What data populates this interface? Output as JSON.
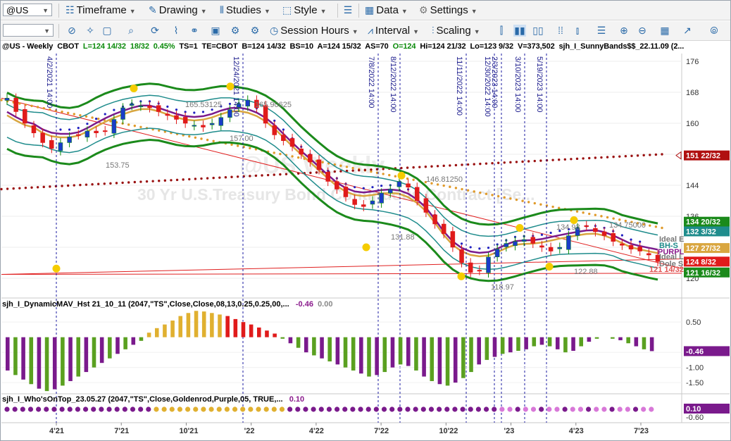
{
  "toolbar": {
    "symbol": "@US",
    "timeframe": "Timeframe",
    "drawing": "Drawing",
    "studies": "Studies",
    "style": "Style",
    "data": "Data",
    "settings": "Settings",
    "session_hours": "Session Hours",
    "interval": "Interval",
    "scaling": "Scaling"
  },
  "info_line": {
    "symbol": "@US - Weekly",
    "exchange": "CBOT",
    "last": "L=124 14/32",
    "change": "18/32",
    "change_pct": "0.45%",
    "ts": "TS=1",
    "te": "TE=CBOT",
    "bid": "B=124 14/32",
    "bs": "BS=10",
    "ask": "A=124 15/32",
    "as": "AS=70",
    "open": "O=124",
    "high": "Hi=124 21/32",
    "low": "Lo=123 9/32",
    "volume": "V=373,502",
    "study": "sjh_I_SunnyBands$$_22.11.09 (2..."
  },
  "watermark": {
    "line1": "@US Weekly",
    "line2": "30 Yr U.S.Treasury Bond Continuous Contract [Se..."
  },
  "panel2": {
    "label": "sjh_I_DynamicMAV_Hst 21_10_11 (2047,\"TS\",Close,Close,08,13,0.25,0.25,00,...",
    "v1": "-0.46",
    "v2": "0.00"
  },
  "panel3": {
    "label": "sjh_I_Who'sOnTop_23.05.27 (2047,\"TS\",Close,Goldenrod,Purple,05,  TRUE,...",
    "v1": "0.10"
  },
  "colors": {
    "up": "#0a8a0a",
    "down": "#e01b1b",
    "band_green": "#1b8a1b",
    "band_teal": "#1f8c8c",
    "ma_purple": "#7a1a8c",
    "ma_gold": "#d9a640",
    "dots_orange": "#e09a2a",
    "dots_darkred": "#9a1010",
    "dots_blue": "#2020c0",
    "marker_yellow": "#f5cc00",
    "vline_blue": "#1a1aa0"
  },
  "chart_data": [
    {
      "type": "candlestick",
      "title": "",
      "y_ticks": [
        "176",
        "168",
        "160",
        "152",
        "144",
        "136",
        "128",
        "120"
      ],
      "ylim": [
        118,
        178
      ],
      "x_ticks": [
        "4'21",
        "7'21",
        "10'21",
        "'22",
        "4'22",
        "7'22",
        "10'22",
        "'23",
        "4'23",
        "7'23"
      ],
      "price_labels": [
        {
          "text": "151 22/32",
          "value": 151.7,
          "color": "#b01010"
        },
        {
          "text": "134 20/32",
          "value": 134.6,
          "color": "#1b8a1b"
        },
        {
          "text": "132 3/32",
          "value": 132.1,
          "color": "#1f8c8c"
        },
        {
          "text": "127 27/32",
          "value": 127.8,
          "color": "#d9a640"
        },
        {
          "text": "124 8/32",
          "value": 124.3,
          "color": "#e01b1b"
        },
        {
          "text": "121 16/32",
          "value": 121.5,
          "color": "#1b8a1b"
        }
      ],
      "right_text_labels": [
        "Ideal E",
        "BH-S",
        "PURPL",
        "Ideal L",
        "Dole S",
        "121 14/32"
      ],
      "annotations": [
        "165.53125",
        "165.90625",
        "157.00",
        "153.75",
        "146.81250",
        "131.88",
        "118.97",
        "122.88",
        "134.75000",
        "134.93"
      ],
      "event_lines": [
        "4/2/2021 14:00",
        "12/24/2021 14:00",
        "7/8/2022 14:00",
        "8/12/2022 14:00",
        "11/11/2022 14:00",
        "12/30/2022 14:00",
        "2/3/2023 14:00",
        "3/10/2023 14:00",
        "5/19/2023 14:00"
      ],
      "close_path": [
        166.5,
        163,
        160,
        157.5,
        155,
        153.5,
        155,
        156.5,
        157,
        158,
        157.5,
        158,
        161,
        164,
        165,
        164.5,
        164,
        163,
        162,
        161,
        160,
        159.5,
        159,
        160,
        161.5,
        163.5,
        165,
        166,
        164,
        160,
        157,
        155.5,
        154,
        152,
        150,
        148,
        145,
        143,
        141,
        139,
        138.5,
        140,
        142,
        143,
        145,
        143.5,
        140,
        137,
        134,
        131.5,
        128,
        124,
        121.5,
        122,
        125.5,
        127.5,
        129,
        129.5,
        130,
        129,
        128,
        127,
        128,
        131,
        133,
        133.5,
        132,
        131,
        129.5,
        128.5,
        127.5,
        127,
        126,
        124.3
      ]
    },
    {
      "type": "bar",
      "title": "",
      "y_ticks": [
        "0.50",
        "-0.50",
        "-1.00",
        "-1.50"
      ],
      "ylim": [
        -1.8,
        0.9
      ],
      "values": [
        -1.1,
        -1.25,
        -1.4,
        -1.55,
        -1.7,
        -1.78,
        -1.72,
        -1.6,
        -1.45,
        -1.3,
        -1.15,
        -1.0,
        -0.85,
        -0.7,
        -0.55,
        -0.4,
        -0.25,
        -0.12,
        0.15,
        0.3,
        0.42,
        0.55,
        0.7,
        0.8,
        0.87,
        0.85,
        0.8,
        0.75,
        0.7,
        0.6,
        0.5,
        0.42,
        0.32,
        0.22,
        0.12,
        -0.05,
        -0.2,
        -0.35,
        -0.5,
        -0.6,
        -0.7,
        -0.8,
        -0.9,
        -1.0,
        -1.1,
        -1.2,
        -1.3,
        -1.25,
        -1.15,
        -1.0,
        -0.9,
        -0.95,
        -1.1,
        -1.3,
        -1.45,
        -1.55,
        -1.6,
        -1.5,
        -1.35,
        -1.15,
        -0.9,
        -0.75,
        -0.65,
        -0.55,
        -0.5,
        -0.45,
        -0.4,
        -0.3,
        -0.25,
        -0.3,
        -0.4,
        -0.5,
        -0.45,
        -0.3,
        -0.15,
        -0.05,
        0.0,
        -0.05,
        -0.1,
        -0.2,
        -0.3,
        -0.4,
        -0.46
      ],
      "value_label": "-0.46"
    },
    {
      "type": "dots",
      "title": "",
      "y_ticks": [
        "-0.60"
      ],
      "value_label": "0.10",
      "segments": [
        {
          "color": "purple",
          "count": 19
        },
        {
          "color": "goldenrod",
          "count": 17
        },
        {
          "color": "purple",
          "count": 26
        },
        {
          "color": "violet",
          "count": 21
        }
      ]
    }
  ]
}
